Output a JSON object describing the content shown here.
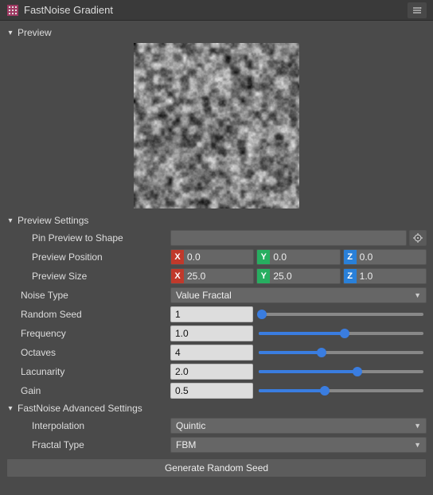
{
  "header": {
    "title": "FastNoise Gradient"
  },
  "preview": {
    "label": "Preview"
  },
  "preview_settings": {
    "label": "Preview Settings",
    "pin_label": "Pin Preview to Shape",
    "position_label": "Preview Position",
    "position": {
      "x": "0.0",
      "y": "0.0",
      "z": "0.0"
    },
    "size_label": "Preview Size",
    "size": {
      "x": "25.0",
      "y": "25.0",
      "z": "1.0"
    }
  },
  "noise_type": {
    "label": "Noise Type",
    "value": "Value Fractal"
  },
  "random_seed": {
    "label": "Random Seed",
    "value": "1",
    "fill_pct": 2
  },
  "frequency": {
    "label": "Frequency",
    "value": "1.0",
    "fill_pct": 52
  },
  "octaves": {
    "label": "Octaves",
    "value": "4",
    "fill_pct": 38
  },
  "lacunarity": {
    "label": "Lacunarity",
    "value": "2.0",
    "fill_pct": 60
  },
  "gain": {
    "label": "Gain",
    "value": "0.5",
    "fill_pct": 40
  },
  "advanced": {
    "label": "FastNoise Advanced Settings",
    "interpolation": {
      "label": "Interpolation",
      "value": "Quintic"
    },
    "fractal_type": {
      "label": "Fractal Type",
      "value": "FBM"
    }
  },
  "generate_label": "Generate Random Seed",
  "accent_color": "#3a7de0",
  "axis_colors": {
    "x": "#c0392b",
    "y": "#27ae60",
    "z": "#2980d9"
  }
}
